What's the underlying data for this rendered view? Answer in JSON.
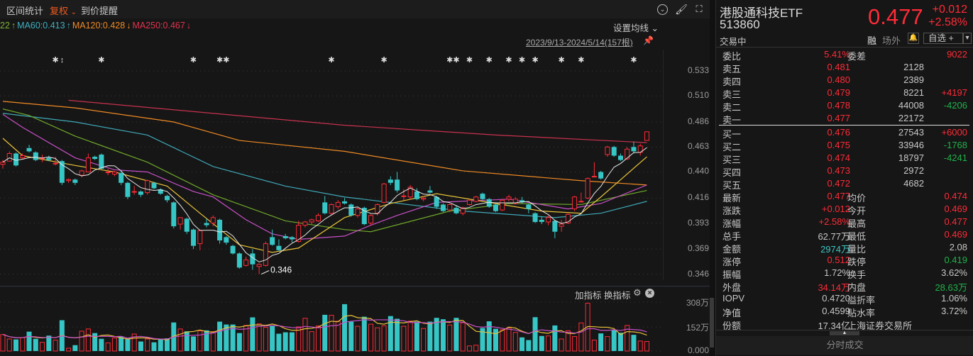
{
  "toolbar": {
    "stats": "区间统计",
    "adjust": "复权",
    "adjust_caret": "⌄",
    "alert": "到价提醒",
    "icons": [
      "chevron-circle-icon",
      "brush-icon",
      "fullscreen-icon"
    ]
  },
  "ma_legend": [
    {
      "text": "22",
      "color": "#7fb23a"
    },
    {
      "text": "↑",
      "color": "#7fb23a"
    },
    {
      "text": "MA60:0.413",
      "color": "#3fb0c0"
    },
    {
      "text": "↑",
      "color": "#3fb0c0"
    },
    {
      "text": "MA120:0.428",
      "color": "#f08a24"
    },
    {
      "text": "↓",
      "color": "#f08a24"
    },
    {
      "text": "MA250:0.467",
      "color": "#e0344e"
    },
    {
      "text": "↓",
      "color": "#e0344e"
    }
  ],
  "set_ma": "设置均线 ⌄",
  "date_range": "2023/9/13-2024/5/14(157根)",
  "low_label": "0.346",
  "indicator": {
    "add": "加指标",
    "switch": "换指标"
  },
  "colors": {
    "up": "#ff2b37",
    "down": "#37c6c6",
    "ma5": "#e8e8e8",
    "ma10": "#e8c23a",
    "ma20": "#c850c8",
    "ma30": "#6fa82a",
    "ma60": "#3fa8b8",
    "ma120": "#f08a24",
    "ma250": "#c8324e"
  },
  "chart_data": {
    "type": "candlestick",
    "price_ticks": [
      "0.533",
      "0.510",
      "0.486",
      "0.463",
      "0.440",
      "0.416",
      "0.393",
      "0.369",
      "0.346"
    ],
    "ylim": [
      0.346,
      0.533
    ],
    "volume_ticks": [
      "308万",
      "152万",
      "0.000"
    ],
    "volume_max": 308,
    "candles": [
      [
        0.447,
        0.451,
        0.443,
        0.449
      ],
      [
        0.45,
        0.459,
        0.45,
        0.457
      ],
      [
        0.457,
        0.458,
        0.445,
        0.446
      ],
      [
        0.453,
        0.457,
        0.452,
        0.455
      ],
      [
        0.462,
        0.465,
        0.458,
        0.459
      ],
      [
        0.458,
        0.459,
        0.45,
        0.451
      ],
      [
        0.453,
        0.456,
        0.449,
        0.453
      ],
      [
        0.453,
        0.455,
        0.45,
        0.451
      ],
      [
        0.448,
        0.454,
        0.446,
        0.448
      ],
      [
        0.45,
        0.451,
        0.428,
        0.43
      ],
      [
        0.432,
        0.434,
        0.43,
        0.433
      ],
      [
        0.433,
        0.434,
        0.428,
        0.43
      ],
      [
        0.437,
        0.442,
        0.435,
        0.441
      ],
      [
        0.44,
        0.457,
        0.44,
        0.453
      ],
      [
        0.454,
        0.455,
        0.451,
        0.452
      ],
      [
        0.456,
        0.457,
        0.442,
        0.443
      ],
      [
        0.44,
        0.443,
        0.437,
        0.44
      ],
      [
        0.438,
        0.441,
        0.436,
        0.44
      ],
      [
        0.439,
        0.441,
        0.428,
        0.43
      ],
      [
        0.43,
        0.431,
        0.415,
        0.417
      ],
      [
        0.422,
        0.427,
        0.419,
        0.422
      ],
      [
        0.422,
        0.423,
        0.417,
        0.419
      ],
      [
        0.421,
        0.433,
        0.419,
        0.432
      ],
      [
        0.43,
        0.431,
        0.424,
        0.425
      ],
      [
        0.424,
        0.425,
        0.419,
        0.42
      ],
      [
        0.418,
        0.419,
        0.412,
        0.414
      ],
      [
        0.412,
        0.413,
        0.388,
        0.39
      ],
      [
        0.392,
        0.398,
        0.387,
        0.398
      ],
      [
        0.397,
        0.398,
        0.383,
        0.385
      ],
      [
        0.387,
        0.388,
        0.369,
        0.372
      ],
      [
        0.374,
        0.387,
        0.368,
        0.386
      ],
      [
        0.393,
        0.397,
        0.389,
        0.391
      ],
      [
        0.393,
        0.4,
        0.39,
        0.398
      ],
      [
        0.396,
        0.397,
        0.374,
        0.377
      ],
      [
        0.38,
        0.381,
        0.373,
        0.375
      ],
      [
        0.372,
        0.373,
        0.364,
        0.365
      ],
      [
        0.365,
        0.366,
        0.351,
        0.352
      ],
      [
        0.354,
        0.362,
        0.353,
        0.359
      ],
      [
        0.365,
        0.369,
        0.35,
        0.355
      ],
      [
        0.353,
        0.356,
        0.346,
        0.355
      ],
      [
        0.354,
        0.376,
        0.353,
        0.374
      ],
      [
        0.38,
        0.387,
        0.372,
        0.373
      ],
      [
        0.372,
        0.378,
        0.367,
        0.368
      ],
      [
        0.381,
        0.383,
        0.378,
        0.379
      ],
      [
        0.38,
        0.381,
        0.375,
        0.378
      ],
      [
        0.376,
        0.395,
        0.375,
        0.391
      ],
      [
        0.391,
        0.395,
        0.389,
        0.394
      ],
      [
        0.394,
        0.397,
        0.392,
        0.396
      ],
      [
        0.395,
        0.402,
        0.394,
        0.4
      ],
      [
        0.412,
        0.418,
        0.401,
        0.402
      ],
      [
        0.402,
        0.411,
        0.4,
        0.41
      ],
      [
        0.408,
        0.414,
        0.406,
        0.412
      ],
      [
        0.413,
        0.416,
        0.41,
        0.411
      ],
      [
        0.41,
        0.411,
        0.399,
        0.4
      ],
      [
        0.4,
        0.407,
        0.398,
        0.406
      ],
      [
        0.407,
        0.408,
        0.391,
        0.392
      ],
      [
        0.393,
        0.401,
        0.391,
        0.4
      ],
      [
        0.402,
        0.411,
        0.4,
        0.41
      ],
      [
        0.412,
        0.43,
        0.411,
        0.429
      ],
      [
        0.433,
        0.436,
        0.428,
        0.43
      ],
      [
        0.433,
        0.44,
        0.421,
        0.423
      ],
      [
        0.418,
        0.424,
        0.414,
        0.418
      ],
      [
        0.417,
        0.428,
        0.415,
        0.426
      ],
      [
        0.422,
        0.425,
        0.414,
        0.415
      ],
      [
        0.415,
        0.418,
        0.413,
        0.416
      ],
      [
        0.423,
        0.427,
        0.42,
        0.421
      ],
      [
        0.417,
        0.418,
        0.406,
        0.408
      ],
      [
        0.41,
        0.411,
        0.403,
        0.404
      ],
      [
        0.405,
        0.411,
        0.403,
        0.41
      ],
      [
        0.407,
        0.409,
        0.401,
        0.402
      ],
      [
        0.402,
        0.408,
        0.4,
        0.407
      ],
      [
        0.41,
        0.415,
        0.409,
        0.414
      ],
      [
        0.413,
        0.418,
        0.412,
        0.417
      ],
      [
        0.42,
        0.421,
        0.414,
        0.415
      ],
      [
        0.415,
        0.416,
        0.407,
        0.408
      ],
      [
        0.41,
        0.411,
        0.403,
        0.404
      ],
      [
        0.405,
        0.415,
        0.404,
        0.414
      ],
      [
        0.415,
        0.419,
        0.413,
        0.417
      ],
      [
        0.411,
        0.417,
        0.41,
        0.415
      ],
      [
        0.414,
        0.417,
        0.411,
        0.412
      ],
      [
        0.41,
        0.411,
        0.402,
        0.406
      ],
      [
        0.402,
        0.403,
        0.393,
        0.394
      ],
      [
        0.396,
        0.399,
        0.392,
        0.394
      ],
      [
        0.394,
        0.4,
        0.391,
        0.398
      ],
      [
        0.395,
        0.396,
        0.379,
        0.385
      ],
      [
        0.39,
        0.396,
        0.385,
        0.392
      ],
      [
        0.393,
        0.402,
        0.392,
        0.401
      ],
      [
        0.406,
        0.418,
        0.404,
        0.417
      ],
      [
        0.413,
        0.421,
        0.412,
        0.413
      ],
      [
        0.416,
        0.435,
        0.415,
        0.434
      ],
      [
        0.436,
        0.449,
        0.435,
        0.436
      ],
      [
        0.44,
        0.441,
        0.433,
        0.434
      ],
      [
        0.456,
        0.464,
        0.454,
        0.463
      ],
      [
        0.463,
        0.464,
        0.454,
        0.455
      ],
      [
        0.455,
        0.457,
        0.45,
        0.451
      ],
      [
        0.452,
        0.463,
        0.451,
        0.461
      ],
      [
        0.463,
        0.468,
        0.457,
        0.459
      ],
      [
        0.458,
        0.466,
        0.455,
        0.464
      ],
      [
        0.469,
        0.477,
        0.469,
        0.477
      ]
    ],
    "volumes": [
      104,
      76,
      73,
      85,
      122,
      77,
      55,
      97,
      69,
      194,
      18,
      37,
      125,
      139,
      113,
      77,
      51,
      82,
      92,
      75,
      107,
      60,
      76,
      55,
      77,
      80,
      180,
      139,
      124,
      92,
      127,
      130,
      122,
      185,
      167,
      167,
      113,
      161,
      212,
      171,
      149,
      158,
      109,
      118,
      118,
      152,
      206,
      122,
      158,
      228,
      225,
      188,
      295,
      185,
      156,
      216,
      169,
      146,
      159,
      220,
      203,
      156,
      188,
      185,
      142,
      185,
      209,
      200,
      164,
      209,
      178,
      32,
      37,
      145,
      187,
      140,
      134,
      146,
      117,
      86,
      69,
      213,
      95,
      95,
      161,
      76,
      128,
      91,
      177,
      301,
      69,
      111,
      91,
      133,
      115,
      161,
      102,
      63,
      60
    ],
    "ma_series": {
      "ma10": [
        [
          0,
          0.471
        ],
        [
          3,
          0.455
        ],
        [
          11,
          0.446
        ],
        [
          17,
          0.44
        ],
        [
          25,
          0.427
        ],
        [
          30,
          0.402
        ],
        [
          36,
          0.373
        ],
        [
          41,
          0.366
        ],
        [
          45,
          0.37
        ],
        [
          52,
          0.398
        ],
        [
          59,
          0.411
        ],
        [
          66,
          0.42
        ],
        [
          73,
          0.413
        ],
        [
          82,
          0.404
        ],
        [
          88,
          0.402
        ],
        [
          91,
          0.417
        ],
        [
          98,
          0.454
        ]
      ],
      "ma20": [
        [
          0,
          0.493
        ],
        [
          3,
          0.481
        ],
        [
          11,
          0.453
        ],
        [
          17,
          0.442
        ],
        [
          22,
          0.44
        ],
        [
          29,
          0.422
        ],
        [
          32,
          0.417
        ],
        [
          37,
          0.396
        ],
        [
          41,
          0.383
        ],
        [
          45,
          0.378
        ],
        [
          52,
          0.381
        ],
        [
          56,
          0.391
        ],
        [
          60,
          0.4
        ],
        [
          66,
          0.412
        ],
        [
          77,
          0.415
        ],
        [
          86,
          0.406
        ],
        [
          91,
          0.411
        ],
        [
          98,
          0.428
        ]
      ],
      "ma30": [
        [
          0,
          0.498
        ],
        [
          4,
          0.492
        ],
        [
          11,
          0.473
        ],
        [
          22,
          0.449
        ],
        [
          32,
          0.419
        ],
        [
          43,
          0.395
        ],
        [
          52,
          0.387
        ],
        [
          56,
          0.385
        ],
        [
          68,
          0.404
        ],
        [
          77,
          0.411
        ],
        [
          88,
          0.41
        ],
        [
          98,
          0.423
        ]
      ],
      "ma60": [
        [
          0,
          0.494
        ],
        [
          11,
          0.486
        ],
        [
          22,
          0.474
        ],
        [
          32,
          0.445
        ],
        [
          43,
          0.427
        ],
        [
          52,
          0.417
        ],
        [
          70,
          0.404
        ],
        [
          84,
          0.398
        ],
        [
          91,
          0.402
        ],
        [
          98,
          0.413
        ]
      ],
      "ma120": [
        [
          0,
          0.505
        ],
        [
          11,
          0.499
        ],
        [
          26,
          0.486
        ],
        [
          36,
          0.469
        ],
        [
          52,
          0.459
        ],
        [
          70,
          0.441
        ],
        [
          88,
          0.432
        ],
        [
          98,
          0.428
        ]
      ],
      "ma250": [
        [
          10,
          0.506
        ],
        [
          52,
          0.483
        ],
        [
          75,
          0.474
        ],
        [
          98,
          0.467
        ]
      ]
    },
    "markers": [
      {
        "i": 8,
        "glyph": "✱"
      },
      {
        "i": 9,
        "glyph": "↕"
      },
      {
        "i": 15,
        "glyph": "✱"
      },
      {
        "i": 29,
        "glyph": "✱"
      },
      {
        "i": 33,
        "glyph": "✱"
      },
      {
        "i": 34,
        "glyph": "✱"
      },
      {
        "i": 50,
        "glyph": "✱"
      },
      {
        "i": 58,
        "glyph": "✱"
      },
      {
        "i": 68,
        "glyph": "✱"
      },
      {
        "i": 69,
        "glyph": "✱"
      },
      {
        "i": 71,
        "glyph": "✱"
      },
      {
        "i": 74,
        "glyph": "✱"
      },
      {
        "i": 77,
        "glyph": "✱"
      },
      {
        "i": 79,
        "glyph": "✱"
      },
      {
        "i": 81,
        "glyph": "✱"
      },
      {
        "i": 85,
        "glyph": "✱"
      },
      {
        "i": 88,
        "glyph": "✱"
      },
      {
        "i": 96,
        "glyph": "✱"
      }
    ]
  },
  "quote": {
    "name": "港股通科技ETF",
    "code": "513860",
    "status": "交易中",
    "price": "0.477",
    "change": "+0.012",
    "change_pct": "+2.58%",
    "margin": "融",
    "otc": "场外",
    "watchlist": "自选 +",
    "dropdown": "▾"
  },
  "order_book": {
    "ratio_label": "委比",
    "ratio": "5.41%",
    "diff_label": "委差",
    "diff": "9022",
    "asks": [
      {
        "label": "卖五",
        "price": "0.481",
        "vol": "2128",
        "chg": ""
      },
      {
        "label": "卖四",
        "price": "0.480",
        "vol": "2389",
        "chg": ""
      },
      {
        "label": "卖三",
        "price": "0.479",
        "vol": "8221",
        "chg": "+4197"
      },
      {
        "label": "卖二",
        "price": "0.478",
        "vol": "44008",
        "chg": "-4206"
      },
      {
        "label": "卖一",
        "price": "0.477",
        "vol": "22172",
        "chg": ""
      }
    ],
    "bids": [
      {
        "label": "买一",
        "price": "0.476",
        "vol": "27543",
        "chg": "+6000"
      },
      {
        "label": "买二",
        "price": "0.475",
        "vol": "33946",
        "chg": "-1768"
      },
      {
        "label": "买三",
        "price": "0.474",
        "vol": "18797",
        "chg": "-4241"
      },
      {
        "label": "买四",
        "price": "0.473",
        "vol": "2972",
        "chg": ""
      },
      {
        "label": "买五",
        "price": "0.472",
        "vol": "4682",
        "chg": ""
      }
    ]
  },
  "stats": [
    {
      "l1": "最新",
      "v1": "0.477",
      "c1": "red",
      "l2": "均价",
      "v2": "0.474",
      "c2": "red"
    },
    {
      "l1": "涨跌",
      "v1": "+0.012",
      "c1": "red",
      "l2": "今开",
      "v2": "0.469",
      "c2": "red"
    },
    {
      "l1": "涨幅",
      "v1": "+2.58%",
      "c1": "red",
      "l2": "最高",
      "v2": "0.477",
      "c2": "red"
    },
    {
      "l1": "总手",
      "v1": "62.77万",
      "c1": "",
      "l2": "最低",
      "v2": "0.469",
      "c2": "red"
    },
    {
      "l1": "金额",
      "v1": "2974万",
      "c1": "cyan",
      "l2": "量比",
      "v2": "2.08",
      "c2": ""
    },
    {
      "l1": "涨停",
      "v1": "0.512",
      "c1": "red",
      "l2": "跌停",
      "v2": "0.419",
      "c2": "grn"
    },
    {
      "l1": "振幅",
      "v1": "1.72%",
      "c1": "",
      "l2": "换手",
      "v2": "3.62%",
      "c2": ""
    },
    {
      "l1": "外盘",
      "v1": "34.14万",
      "c1": "red",
      "l2": "内盘",
      "v2": "28.63万",
      "c2": "grn"
    },
    {
      "l1": "IOPV",
      "v1": "0.4720",
      "c1": "",
      "l2": "溢折率",
      "v2": "1.06%",
      "c2": ""
    },
    {
      "l1": "净值",
      "v1": "0.4599",
      "c1": "",
      "l2": "贴水率",
      "v2": "3.72%",
      "c2": ""
    },
    {
      "l1": "份额",
      "v1": "17.34亿",
      "c1": "",
      "l2": "上海证券交易所",
      "v2": "",
      "c2": ""
    }
  ],
  "bottom_tab": "分时成交"
}
